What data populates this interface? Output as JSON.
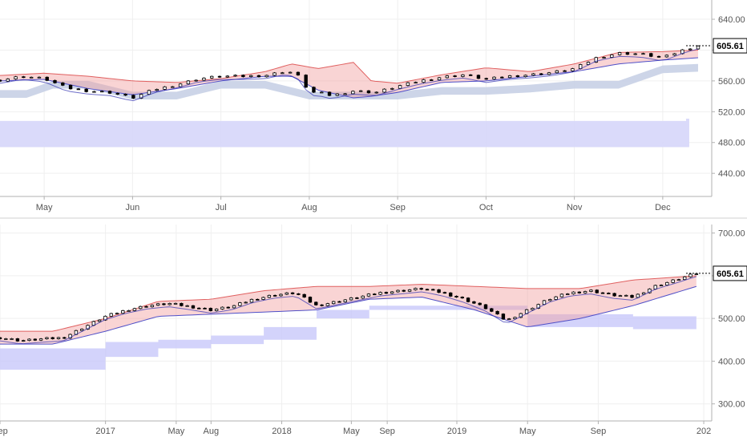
{
  "chart_data": [
    {
      "type": "candlestick",
      "name_panel": "top",
      "y_axis": {
        "ticks": [
          640,
          600,
          560,
          520,
          480,
          440
        ],
        "tick_labels": [
          "640.00",
          "600.00",
          "560.00",
          "520.00",
          "480.00",
          "440.00"
        ],
        "ylim": [
          410,
          665
        ]
      },
      "x_axis": {
        "tick_labels": [
          "May",
          "Jun",
          "Jul",
          "Aug",
          "Sep",
          "Oct",
          "Nov",
          "Dec"
        ],
        "tick_positions": [
          0.5,
          1.5,
          2.5,
          3.5,
          4.5,
          5.5,
          6.5,
          7.5
        ],
        "xlim": [
          0,
          8
        ]
      },
      "last_price": 605.61,
      "last_price_label": "605.61",
      "colors": {
        "bull_cloud": "#f2a0a0",
        "bear_cloud": "#9b9be6",
        "lagging_band": "#c8d0e6",
        "far_band": "#d6d6fa",
        "candle": "#000000",
        "axis": "#555555",
        "grid": "#eeeeee"
      },
      "series": [
        {
          "name": "",
          "role": "price",
          "x": [
            0,
            0.25,
            0.5,
            0.75,
            1.0,
            1.25,
            1.5,
            1.75,
            2.0,
            2.25,
            2.5,
            2.75,
            3.0,
            3.25,
            3.4,
            3.5,
            3.6,
            3.75,
            4.0,
            4.25,
            4.5,
            4.75,
            5.0,
            5.25,
            5.5,
            5.75,
            6.0,
            6.25,
            6.5,
            6.75,
            7.0,
            7.25,
            7.5,
            7.75,
            7.9
          ],
          "y": [
            561,
            566,
            563,
            551,
            547,
            545,
            538,
            549,
            555,
            563,
            566,
            566,
            567,
            573,
            565,
            545,
            545,
            541,
            547,
            545,
            553,
            560,
            565,
            568,
            562,
            566,
            568,
            571,
            576,
            590,
            596,
            595,
            590,
            601,
            605.61
          ]
        },
        {
          "name": "",
          "role": "cloud-upper",
          "x": [
            0,
            0.5,
            1.0,
            1.5,
            2.0,
            2.5,
            3.0,
            3.3,
            3.6,
            4.0,
            4.2,
            4.5,
            5.0,
            5.5,
            6.0,
            6.5,
            7.0,
            7.5,
            7.9
          ],
          "y": [
            567,
            570,
            566,
            560,
            558,
            563,
            572,
            582,
            576,
            584,
            560,
            557,
            568,
            577,
            572,
            582,
            597,
            598,
            600
          ]
        },
        {
          "name": "",
          "role": "cloud-lower",
          "x": [
            0,
            0.5,
            1.0,
            1.5,
            2.0,
            2.5,
            3.0,
            3.3,
            3.6,
            4.0,
            4.2,
            4.5,
            5.0,
            5.5,
            6.0,
            6.5,
            7.0,
            7.5,
            7.9
          ],
          "y": [
            560,
            562,
            550,
            542,
            550,
            560,
            566,
            566,
            548,
            538,
            540,
            545,
            558,
            560,
            566,
            572,
            582,
            587,
            590
          ]
        },
        {
          "name": "",
          "role": "lagging-band",
          "x": [
            0,
            0.3,
            0.6,
            1.0,
            1.5,
            2.0,
            2.5,
            3.0,
            3.5,
            4.0,
            4.5,
            5.0,
            5.5,
            6.0,
            6.5,
            7.0,
            7.5,
            7.9
          ],
          "y": [
            548,
            548,
            560,
            560,
            546,
            546,
            560,
            560,
            546,
            546,
            546,
            552,
            552,
            555,
            560,
            560,
            580,
            582
          ]
        },
        {
          "name": "",
          "role": "far-band",
          "x": [
            0,
            7.8
          ],
          "y_low": 474,
          "y_high": 508,
          "y_high_end": 511
        }
      ]
    },
    {
      "type": "candlestick",
      "name_panel": "bottom",
      "y_axis": {
        "ticks": [
          700,
          600,
          500,
          400,
          300
        ],
        "tick_labels": [
          "700.00",
          "600.00",
          "500.00",
          "400.00",
          "300.00"
        ],
        "ylim": [
          260,
          720
        ]
      },
      "x_axis": {
        "tick_labels": [
          "Sep",
          "2017",
          "May",
          "Aug",
          "2018",
          "May",
          "Sep",
          "2019",
          "May",
          "Sep",
          "202"
        ],
        "tick_positions": [
          0,
          1.0,
          1.67,
          2.0,
          2.67,
          3.33,
          3.67,
          4.33,
          5.0,
          5.67,
          6.67
        ],
        "xlim": [
          0,
          6.7
        ]
      },
      "last_price": 605.61,
      "last_price_label": "605.61",
      "colors": {
        "bull_cloud": "#f2a0a0",
        "bear_cloud": "#9b9be6",
        "far_band": "#c8c8fa",
        "candle": "#000000",
        "axis": "#555555",
        "grid": "#eeeeee"
      },
      "series": [
        {
          "name": "",
          "role": "price",
          "x": [
            0,
            0.2,
            0.4,
            0.6,
            0.8,
            1.0,
            1.2,
            1.4,
            1.6,
            1.8,
            2.0,
            2.2,
            2.4,
            2.6,
            2.8,
            3.0,
            3.2,
            3.4,
            3.6,
            3.8,
            4.0,
            4.2,
            4.4,
            4.6,
            4.8,
            5.0,
            5.2,
            5.4,
            5.6,
            5.8,
            6.0,
            6.2,
            6.4,
            6.6
          ],
          "y": [
            455,
            448,
            452,
            455,
            480,
            505,
            520,
            530,
            535,
            528,
            520,
            528,
            545,
            555,
            560,
            530,
            540,
            550,
            560,
            565,
            570,
            560,
            545,
            525,
            495,
            520,
            545,
            560,
            565,
            555,
            550,
            575,
            590,
            605.61
          ]
        },
        {
          "name": "",
          "role": "cloud-upper",
          "x": [
            0,
            0.5,
            1.0,
            1.5,
            2.0,
            2.5,
            3.0,
            3.5,
            4.0,
            4.5,
            5.0,
            5.5,
            6.0,
            6.6
          ],
          "y": [
            470,
            470,
            500,
            540,
            545,
            565,
            575,
            575,
            580,
            575,
            570,
            570,
            590,
            600
          ]
        },
        {
          "name": "",
          "role": "cloud-lower",
          "x": [
            0,
            0.5,
            1.0,
            1.5,
            2.0,
            2.5,
            3.0,
            3.5,
            4.0,
            4.5,
            5.0,
            5.5,
            6.0,
            6.6
          ],
          "y": [
            440,
            440,
            470,
            505,
            510,
            515,
            520,
            545,
            550,
            520,
            480,
            500,
            530,
            575
          ]
        },
        {
          "name": "",
          "role": "far-band",
          "x": [
            0,
            0.5,
            1.0,
            1.5,
            2.0,
            2.5,
            3.0,
            3.5,
            4.0,
            4.5,
            5.0,
            5.5,
            6.0,
            6.6
          ],
          "y_low": [
            380,
            380,
            410,
            430,
            440,
            450,
            500,
            520,
            520,
            520,
            480,
            480,
            475,
            475
          ],
          "y_high": [
            430,
            430,
            445,
            450,
            460,
            480,
            520,
            530,
            530,
            530,
            510,
            510,
            505,
            505
          ]
        }
      ]
    }
  ]
}
